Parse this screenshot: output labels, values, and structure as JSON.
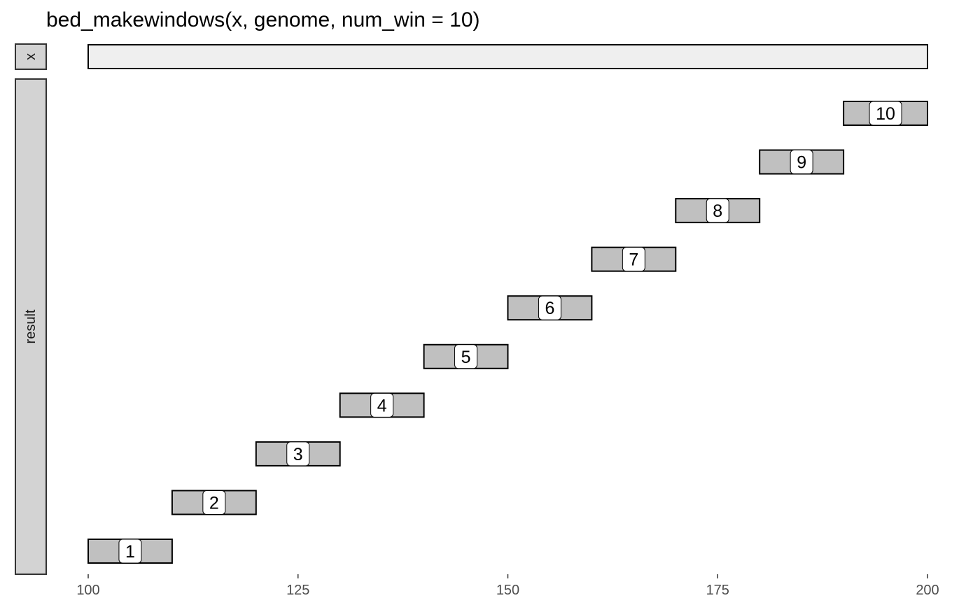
{
  "chart_data": {
    "type": "bar",
    "title": "bed_makewindows(x, genome, num_win = 10)",
    "xlabel": "",
    "ylabel": "",
    "xlim": [
      100,
      200
    ],
    "x_ticks": [
      100,
      125,
      150,
      175,
      200
    ],
    "grid": false,
    "panels": [
      {
        "name": "x",
        "intervals": [
          {
            "start": 100,
            "end": 200,
            "label": ""
          }
        ]
      },
      {
        "name": "result",
        "intervals": [
          {
            "start": 100,
            "end": 110,
            "label": "1"
          },
          {
            "start": 110,
            "end": 120,
            "label": "2"
          },
          {
            "start": 120,
            "end": 130,
            "label": "3"
          },
          {
            "start": 130,
            "end": 140,
            "label": "4"
          },
          {
            "start": 140,
            "end": 150,
            "label": "5"
          },
          {
            "start": 150,
            "end": 160,
            "label": "6"
          },
          {
            "start": 160,
            "end": 170,
            "label": "7"
          },
          {
            "start": 170,
            "end": 180,
            "label": "8"
          },
          {
            "start": 180,
            "end": 190,
            "label": "9"
          },
          {
            "start": 190,
            "end": 200,
            "label": "10"
          }
        ]
      }
    ],
    "colors": {
      "x_fill": "#efefef",
      "result_fill": "#c0c0c0",
      "strip_fill": "#d3d3d3",
      "stroke": "#000000",
      "label_fill": "#ffffff"
    }
  }
}
